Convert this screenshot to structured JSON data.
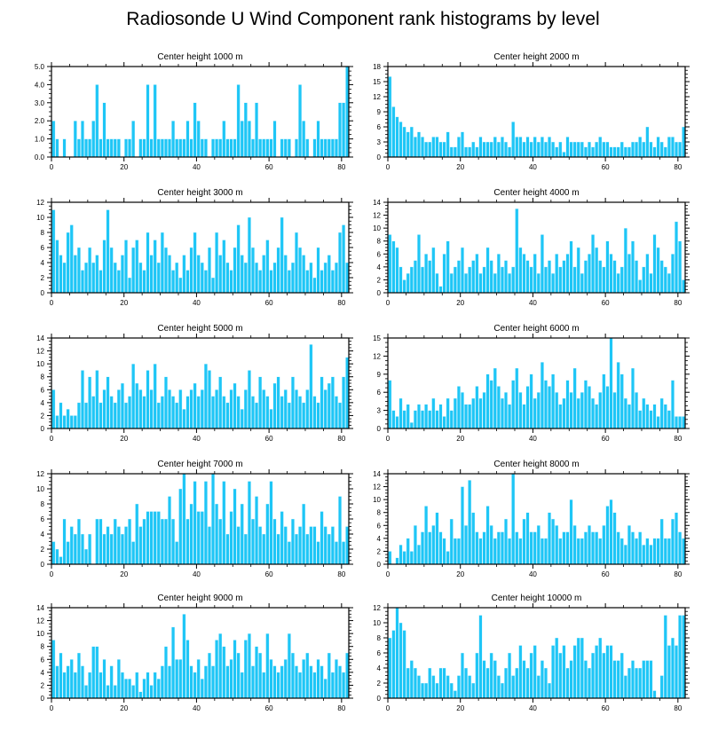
{
  "title": "Radiosonde U Wind Component rank histograms by level",
  "colors": {
    "bar": "#1ec6f6",
    "axis": "#000000"
  },
  "chart_data": [
    {
      "type": "bar",
      "title": "Center height 1000 m",
      "xlim": [
        0,
        82
      ],
      "ylim": [
        0,
        5
      ],
      "xticks": [
        0,
        20,
        40,
        60,
        80
      ],
      "yticks": [
        "0.0",
        "1.0",
        "2.0",
        "3.0",
        "4.0",
        "5.0"
      ],
      "values": [
        2,
        1,
        0,
        1,
        0,
        0,
        2,
        1,
        2,
        1,
        1,
        2,
        4,
        1,
        3,
        1,
        1,
        1,
        1,
        0,
        1,
        1,
        2,
        0,
        1,
        1,
        4,
        1,
        4,
        1,
        1,
        1,
        1,
        2,
        1,
        1,
        1,
        2,
        1,
        3,
        2,
        1,
        1,
        0,
        1,
        1,
        1,
        2,
        1,
        1,
        1,
        4,
        2,
        3,
        2,
        1,
        3,
        1,
        1,
        1,
        1,
        2,
        0,
        1,
        1,
        1,
        0,
        1,
        4,
        2,
        1,
        0,
        1,
        2,
        1,
        1,
        1,
        1,
        1,
        3,
        3,
        5
      ]
    },
    {
      "type": "bar",
      "title": "Center height 2000 m",
      "xlim": [
        0,
        82
      ],
      "ylim": [
        0,
        18
      ],
      "xticks": [
        0,
        20,
        40,
        60,
        80
      ],
      "yticks": [
        "0",
        "3",
        "6",
        "9",
        "12",
        "15",
        "18"
      ],
      "values": [
        16,
        10,
        8,
        7,
        6,
        5,
        6,
        4,
        5,
        4,
        3,
        3,
        4,
        4,
        3,
        3,
        5,
        2,
        2,
        4,
        5,
        2,
        2,
        3,
        2,
        4,
        3,
        3,
        3,
        4,
        3,
        4,
        3,
        2,
        7,
        4,
        4,
        3,
        4,
        3,
        4,
        3,
        4,
        3,
        4,
        3,
        2,
        3,
        1,
        4,
        3,
        3,
        3,
        3,
        2,
        3,
        2,
        3,
        4,
        3,
        3,
        2,
        2,
        2,
        3,
        2,
        2,
        3,
        3,
        4,
        3,
        6,
        3,
        2,
        4,
        3,
        2,
        4,
        4,
        3,
        3,
        6
      ]
    },
    {
      "type": "bar",
      "title": "Center height 3000 m",
      "xlim": [
        0,
        82
      ],
      "ylim": [
        0,
        12
      ],
      "xticks": [
        0,
        20,
        40,
        60,
        80
      ],
      "yticks": [
        "0",
        "2",
        "4",
        "6",
        "8",
        "10",
        "12"
      ],
      "values": [
        11,
        7,
        5,
        4,
        8,
        9,
        5,
        6,
        3,
        4,
        6,
        4,
        5,
        3,
        7,
        11,
        6,
        4,
        3,
        5,
        7,
        2,
        6,
        7,
        4,
        3,
        8,
        5,
        7,
        4,
        8,
        6,
        5,
        3,
        4,
        2,
        5,
        3,
        6,
        8,
        5,
        4,
        3,
        6,
        2,
        8,
        5,
        7,
        4,
        3,
        6,
        9,
        5,
        4,
        10,
        6,
        4,
        3,
        5,
        7,
        3,
        4,
        6,
        10,
        5,
        3,
        4,
        8,
        6,
        5,
        3,
        4,
        2,
        6,
        3,
        4,
        5,
        3,
        4,
        8,
        9,
        4
      ]
    },
    {
      "type": "bar",
      "title": "Center height 4000 m",
      "xlim": [
        0,
        82
      ],
      "ylim": [
        0,
        14
      ],
      "xticks": [
        0,
        20,
        40,
        60,
        80
      ],
      "yticks": [
        "0",
        "2",
        "4",
        "6",
        "8",
        "10",
        "12",
        "14"
      ],
      "values": [
        9,
        8,
        7,
        4,
        2,
        3,
        4,
        5,
        9,
        4,
        6,
        5,
        7,
        3,
        1,
        6,
        8,
        3,
        4,
        5,
        7,
        3,
        4,
        5,
        6,
        3,
        4,
        7,
        5,
        3,
        6,
        4,
        5,
        3,
        4,
        13,
        7,
        6,
        5,
        4,
        6,
        3,
        9,
        4,
        5,
        3,
        6,
        4,
        5,
        6,
        8,
        4,
        7,
        3,
        5,
        6,
        9,
        7,
        5,
        4,
        8,
        6,
        5,
        3,
        4,
        10,
        6,
        8,
        5,
        2,
        4,
        6,
        3,
        9,
        7,
        5,
        4,
        3,
        6,
        11,
        8,
        2
      ]
    },
    {
      "type": "bar",
      "title": "Center height 5000 m",
      "xlim": [
        0,
        82
      ],
      "ylim": [
        0,
        14
      ],
      "xticks": [
        0,
        20,
        40,
        60,
        80
      ],
      "yticks": [
        "0",
        "2",
        "4",
        "6",
        "8",
        "10",
        "12",
        "14"
      ],
      "values": [
        6,
        2,
        4,
        2,
        3,
        2,
        2,
        4,
        9,
        4,
        8,
        5,
        9,
        4,
        6,
        8,
        5,
        4,
        6,
        7,
        4,
        5,
        10,
        7,
        6,
        5,
        9,
        6,
        10,
        4,
        5,
        8,
        6,
        5,
        4,
        6,
        3,
        5,
        6,
        7,
        5,
        6,
        10,
        9,
        5,
        6,
        8,
        5,
        4,
        6,
        7,
        5,
        3,
        6,
        9,
        5,
        4,
        8,
        6,
        5,
        3,
        7,
        8,
        5,
        6,
        4,
        8,
        6,
        5,
        4,
        6,
        13,
        5,
        4,
        8,
        6,
        7,
        8,
        5,
        4,
        8,
        11
      ]
    },
    {
      "type": "bar",
      "title": "Center height 6000 m",
      "xlim": [
        0,
        82
      ],
      "ylim": [
        0,
        15
      ],
      "xticks": [
        0,
        20,
        40,
        60,
        80
      ],
      "yticks": [
        "0",
        "3",
        "6",
        "9",
        "12",
        "15"
      ],
      "values": [
        8,
        3,
        2,
        5,
        3,
        4,
        1,
        3,
        4,
        3,
        4,
        3,
        5,
        3,
        4,
        2,
        5,
        3,
        5,
        7,
        6,
        4,
        4,
        5,
        7,
        5,
        6,
        9,
        8,
        10,
        7,
        5,
        6,
        4,
        8,
        10,
        6,
        4,
        7,
        9,
        5,
        6,
        11,
        8,
        7,
        9,
        6,
        4,
        5,
        8,
        6,
        10,
        5,
        6,
        8,
        7,
        5,
        4,
        6,
        9,
        7,
        15,
        6,
        11,
        9,
        5,
        4,
        10,
        6,
        3,
        5,
        4,
        3,
        4,
        2,
        5,
        4,
        3,
        8,
        2,
        2,
        2
      ]
    },
    {
      "type": "bar",
      "title": "Center height 7000 m",
      "xlim": [
        0,
        82
      ],
      "ylim": [
        0,
        12
      ],
      "xticks": [
        0,
        20,
        40,
        60,
        80
      ],
      "yticks": [
        "0",
        "2",
        "4",
        "6",
        "8",
        "10",
        "12"
      ],
      "values": [
        3,
        2,
        1,
        6,
        3,
        5,
        4,
        6,
        4,
        2,
        4,
        0,
        6,
        6,
        4,
        5,
        4,
        6,
        5,
        4,
        5,
        6,
        3,
        8,
        5,
        6,
        7,
        7,
        7,
        7,
        6,
        6,
        9,
        6,
        3,
        10,
        12,
        6,
        8,
        11,
        7,
        7,
        11,
        5,
        12,
        8,
        6,
        11,
        4,
        7,
        10,
        5,
        8,
        4,
        11,
        6,
        9,
        5,
        4,
        8,
        11,
        6,
        4,
        7,
        5,
        3,
        6,
        4,
        5,
        8,
        4,
        5,
        5,
        3,
        7,
        5,
        4,
        5,
        3,
        9,
        3,
        5
      ]
    },
    {
      "type": "bar",
      "title": "Center height 8000 m",
      "xlim": [
        0,
        82
      ],
      "ylim": [
        0,
        14
      ],
      "xticks": [
        0,
        20,
        40,
        60,
        80
      ],
      "yticks": [
        "0",
        "2",
        "4",
        "6",
        "8",
        "10",
        "12",
        "14"
      ],
      "values": [
        2,
        0,
        1,
        3,
        2,
        4,
        2,
        6,
        3,
        5,
        9,
        5,
        6,
        8,
        5,
        4,
        2,
        7,
        4,
        4,
        12,
        6,
        13,
        8,
        5,
        4,
        5,
        9,
        6,
        4,
        5,
        5,
        7,
        4,
        14,
        5,
        4,
        7,
        8,
        5,
        5,
        6,
        4,
        4,
        8,
        7,
        6,
        4,
        5,
        5,
        10,
        6,
        4,
        4,
        5,
        6,
        5,
        5,
        4,
        6,
        9,
        10,
        8,
        5,
        4,
        3,
        6,
        5,
        4,
        5,
        3,
        4,
        3,
        4,
        4,
        7,
        4,
        4,
        7,
        8,
        5,
        4
      ]
    },
    {
      "type": "bar",
      "title": "Center height 9000 m",
      "xlim": [
        0,
        82
      ],
      "ylim": [
        0,
        14
      ],
      "xticks": [
        0,
        20,
        40,
        60,
        80
      ],
      "yticks": [
        "0",
        "2",
        "4",
        "6",
        "8",
        "10",
        "12",
        "14"
      ],
      "values": [
        9,
        5,
        7,
        4,
        5,
        6,
        4,
        7,
        5,
        2,
        4,
        8,
        8,
        4,
        6,
        2,
        5,
        2,
        6,
        4,
        3,
        3,
        2,
        4,
        1,
        3,
        4,
        2,
        4,
        3,
        5,
        8,
        5,
        11,
        6,
        6,
        13,
        9,
        5,
        4,
        6,
        3,
        5,
        7,
        5,
        9,
        10,
        8,
        5,
        6,
        9,
        7,
        4,
        9,
        10,
        5,
        8,
        7,
        4,
        10,
        6,
        5,
        4,
        5,
        6,
        10,
        7,
        5,
        4,
        6,
        7,
        5,
        4,
        6,
        5,
        3,
        7,
        4,
        6,
        5,
        4,
        7
      ]
    },
    {
      "type": "bar",
      "title": "Center height 10000 m",
      "xlim": [
        0,
        82
      ],
      "ylim": [
        0,
        12
      ],
      "xticks": [
        0,
        20,
        40,
        60,
        80
      ],
      "yticks": [
        "0",
        "2",
        "4",
        "6",
        "8",
        "10",
        "12"
      ],
      "values": [
        8,
        9,
        12,
        10,
        9,
        4,
        5,
        4,
        3,
        2,
        2,
        4,
        3,
        2,
        4,
        4,
        3,
        2,
        1,
        3,
        6,
        4,
        3,
        2,
        6,
        11,
        5,
        4,
        6,
        5,
        3,
        2,
        4,
        6,
        3,
        4,
        7,
        5,
        4,
        6,
        7,
        3,
        5,
        4,
        2,
        7,
        8,
        6,
        7,
        4,
        5,
        7,
        8,
        8,
        5,
        4,
        6,
        7,
        8,
        6,
        7,
        7,
        5,
        5,
        6,
        3,
        4,
        5,
        4,
        4,
        5,
        5,
        5,
        1,
        0,
        3,
        11,
        7,
        8,
        7,
        11,
        11
      ]
    }
  ]
}
